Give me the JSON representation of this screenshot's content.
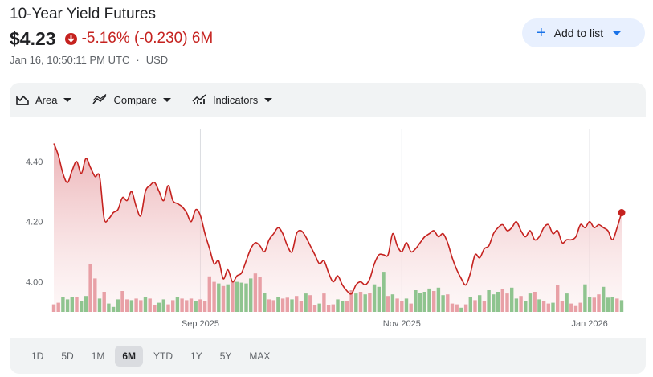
{
  "header": {
    "title": "10-Year Yield Futures",
    "price": "$4.23",
    "change": "-5.16% (-0.230) 6M",
    "timestamp": "Jan 16, 10:50:11 PM UTC",
    "separator": "·",
    "currency": "USD",
    "add_button_label": "Add to list"
  },
  "toolbar": {
    "area_label": "Area",
    "compare_label": "Compare",
    "indicators_label": "Indicators"
  },
  "ranges": [
    "1D",
    "5D",
    "1M",
    "6M",
    "YTD",
    "1Y",
    "5Y",
    "MAX"
  ],
  "active_range": "6M",
  "colors": {
    "down": "#c5221f",
    "up_volume": "#8fc48f",
    "down_volume": "#e8a0a6",
    "accent": "#1a73e8"
  },
  "chart_data": {
    "type": "area",
    "y_ticks": [
      "4.40",
      "4.20",
      "4.00"
    ],
    "y_tick_values": [
      4.4,
      4.2,
      4.0
    ],
    "ylim": [
      3.9,
      4.52
    ],
    "x_ticks": [
      {
        "label": "Sep 2025",
        "index": 32
      },
      {
        "label": "Nov 2025",
        "index": 76
      },
      {
        "label": "Jan 2026",
        "index": 117
      }
    ],
    "grid": "vertical",
    "series": [
      {
        "values": [
          4.46,
          4.42,
          4.36,
          4.33,
          4.37,
          4.4,
          4.36,
          4.41,
          4.38,
          4.35,
          4.35,
          4.21,
          4.21,
          4.23,
          4.24,
          4.28,
          4.27,
          4.3,
          4.25,
          4.22,
          4.3,
          4.32,
          4.33,
          4.3,
          4.27,
          4.32,
          4.27,
          4.26,
          4.25,
          4.23,
          4.2,
          4.24,
          4.22,
          4.16,
          4.11,
          4.06,
          4.07,
          4.01,
          4.04,
          4.0,
          4.02,
          4.03,
          4.07,
          4.11,
          4.13,
          4.12,
          4.1,
          4.14,
          4.16,
          4.18,
          4.16,
          4.12,
          4.1,
          4.16,
          4.17,
          4.15,
          4.12,
          4.09,
          4.06,
          4.07,
          4.03,
          4.0,
          4.02,
          3.99,
          3.97,
          3.96,
          3.99,
          4.0,
          3.99,
          4.01,
          4.06,
          4.09,
          4.09,
          4.09,
          4.16,
          4.12,
          4.1,
          4.13,
          4.1,
          4.11,
          4.13,
          4.15,
          4.16,
          4.17,
          4.15,
          4.16,
          4.13,
          4.08,
          4.04,
          4.01,
          3.99,
          4.03,
          4.09,
          4.08,
          4.11,
          4.12,
          4.16,
          4.18,
          4.19,
          4.17,
          4.18,
          4.2,
          4.17,
          4.15,
          4.17,
          4.14,
          4.15,
          4.18,
          4.19,
          4.16,
          4.17,
          4.13,
          4.14,
          4.14,
          4.15,
          4.19,
          4.18,
          4.2,
          4.18,
          4.19,
          4.18,
          4.17,
          4.14,
          4.18,
          4.23
        ],
        "volumes": [
          0.18,
          0.22,
          0.35,
          0.3,
          0.36,
          0.36,
          0.26,
          0.38,
          1.14,
          0.8,
          0.32,
          0.48,
          0.2,
          0.12,
          0.3,
          0.5,
          0.3,
          0.28,
          0.32,
          0.28,
          0.36,
          0.32,
          0.16,
          0.22,
          0.3,
          0.18,
          0.28,
          0.36,
          0.32,
          0.28,
          0.32,
          0.26,
          0.3,
          0.26,
          0.85,
          0.72,
          0.68,
          0.62,
          0.66,
          0.72,
          0.72,
          0.7,
          0.68,
          0.8,
          0.92,
          0.84,
          0.45,
          0.3,
          0.28,
          0.36,
          0.32,
          0.34,
          0.3,
          0.38,
          0.26,
          0.44,
          0.4,
          0.16,
          0.2,
          0.44,
          0.16,
          0.18,
          0.3,
          0.26,
          0.26,
          0.52,
          0.44,
          0.48,
          0.42,
          0.46,
          0.66,
          0.6,
          0.96,
          0.38,
          0.42,
          0.32,
          0.26,
          0.32,
          0.2,
          0.52,
          0.46,
          0.48,
          0.56,
          0.5,
          0.58,
          0.4,
          0.42,
          0.2,
          0.18,
          0.1,
          0.18,
          0.36,
          0.28,
          0.4,
          0.26,
          0.52,
          0.42,
          0.48,
          0.54,
          0.44,
          0.58,
          0.32,
          0.38,
          0.26,
          0.44,
          0.48,
          0.3,
          0.26,
          0.2,
          0.22,
          0.64,
          0.26,
          0.44,
          0.2,
          0.14,
          0.22,
          0.66,
          0.36,
          0.34,
          0.42,
          0.6,
          0.34,
          0.36,
          0.32,
          0.28
        ],
        "volume_direction": [
          "d",
          "d",
          "u",
          "u",
          "u",
          "d",
          "u",
          "u",
          "d",
          "d",
          "u",
          "d",
          "u",
          "u",
          "u",
          "d",
          "d",
          "u",
          "d",
          "d",
          "u",
          "d",
          "d",
          "u",
          "u",
          "d",
          "d",
          "u",
          "d",
          "d",
          "d",
          "u",
          "d",
          "d",
          "d",
          "d",
          "u",
          "d",
          "u",
          "d",
          "u",
          "u",
          "u",
          "u",
          "d",
          "d",
          "u",
          "d",
          "d",
          "u",
          "d",
          "d",
          "u",
          "d",
          "d",
          "u",
          "d",
          "d",
          "u",
          "d",
          "d",
          "d",
          "u",
          "u",
          "d",
          "d",
          "u",
          "d",
          "u",
          "d",
          "u",
          "u",
          "u",
          "d",
          "u",
          "d",
          "d",
          "u",
          "d",
          "u",
          "u",
          "u",
          "u",
          "d",
          "u",
          "u",
          "d",
          "d",
          "d",
          "u",
          "d",
          "u",
          "d",
          "u",
          "d",
          "u",
          "u",
          "u",
          "d",
          "d",
          "u",
          "u",
          "d",
          "u",
          "u",
          "d",
          "u",
          "d",
          "d",
          "u",
          "d",
          "d",
          "u",
          "d",
          "d",
          "d",
          "u",
          "u",
          "d",
          "d",
          "u",
          "u",
          "u",
          "d",
          "u"
        ]
      }
    ]
  }
}
